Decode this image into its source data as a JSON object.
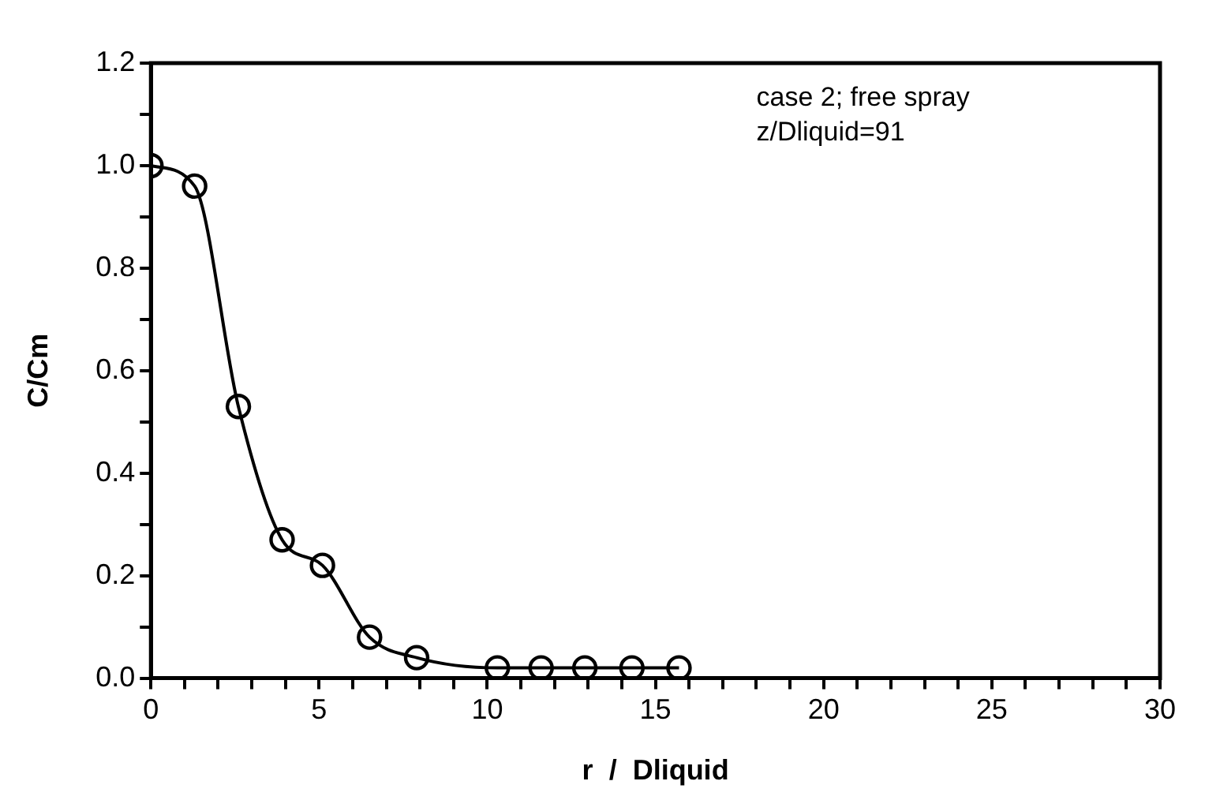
{
  "chart_data": {
    "type": "line",
    "xlabel": "r  /  Dliquid",
    "ylabel": "C/Cm",
    "annotations": [
      "case 2; free spray",
      "z/Dliquid=91"
    ],
    "series": [
      {
        "color": "#000000",
        "x": [
          0,
          1.3,
          2.6,
          3.9,
          5.1,
          6.5,
          7.9,
          10.3,
          11.6,
          12.9,
          14.3,
          15.7
        ],
        "values": [
          1.0,
          0.96,
          0.53,
          0.27,
          0.22,
          0.08,
          0.04,
          0.02,
          0.02,
          0.02,
          0.02,
          0.02
        ]
      }
    ],
    "xlim": [
      0,
      30
    ],
    "xticks": [
      0,
      {
        "value": 1,
        "label": null
      },
      {
        "value": 2,
        "label": null
      },
      {
        "value": 3,
        "label": null
      },
      {
        "value": 4,
        "label": null
      },
      5,
      {
        "value": 6,
        "label": null
      },
      {
        "value": 7,
        "label": null
      },
      {
        "value": 8,
        "label": null
      },
      {
        "value": 9,
        "label": null
      },
      10,
      {
        "value": 11,
        "label": null
      },
      {
        "value": 12,
        "label": null
      },
      {
        "value": 13,
        "label": null
      },
      {
        "value": 14,
        "label": null
      },
      15,
      {
        "value": 16,
        "label": null
      },
      {
        "value": 17,
        "label": null
      },
      {
        "value": 18,
        "label": null
      },
      {
        "value": 19,
        "label": null
      },
      20,
      {
        "value": 21,
        "label": null
      },
      {
        "value": 22,
        "label": null
      },
      {
        "value": 23,
        "label": null
      },
      {
        "value": 24,
        "label": null
      },
      25,
      {
        "value": 26,
        "label": null
      },
      {
        "value": 27,
        "label": null
      },
      {
        "value": 28,
        "label": null
      },
      {
        "value": 29,
        "label": null
      },
      30
    ],
    "ylim": [
      0,
      1.2
    ],
    "yticks": [
      {
        "value": 0,
        "label": "0.0"
      },
      {
        "value": 0.1,
        "label": null
      },
      {
        "value": 0.2,
        "label": "0.2"
      },
      {
        "value": 0.3,
        "label": null
      },
      {
        "value": 0.4,
        "label": "0.4"
      },
      {
        "value": 0.5,
        "label": null
      },
      {
        "value": 0.6,
        "label": "0.6"
      },
      {
        "value": 0.7,
        "label": null
      },
      {
        "value": 0.8,
        "label": "0.8"
      },
      {
        "value": 0.9,
        "label": null
      },
      {
        "value": 1.0,
        "label": "1.0"
      },
      {
        "value": 1.1,
        "label": null
      },
      {
        "value": 1.2,
        "label": "1.2"
      }
    ],
    "marker": "circle",
    "line_style": "solid",
    "grid": false,
    "legend": false
  }
}
